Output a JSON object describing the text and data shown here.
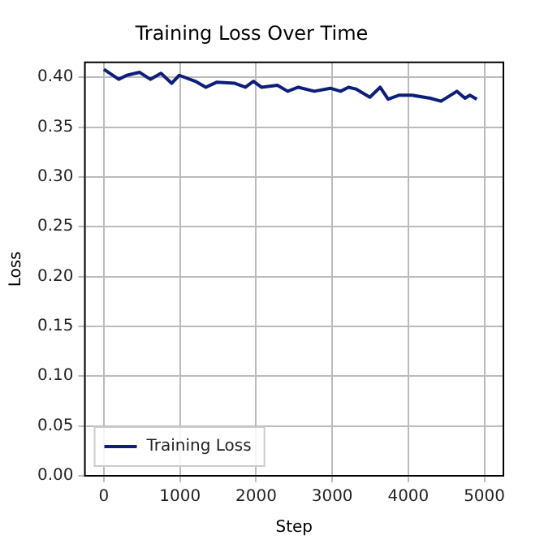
{
  "chart_data": {
    "type": "line",
    "title": "Training Loss Over Time",
    "xlabel": "Step",
    "ylabel": "Loss",
    "xlim": [
      -250,
      5250
    ],
    "xticks": [
      0,
      1000,
      2000,
      3000,
      4000,
      5000
    ],
    "ylim": [
      0,
      0.415
    ],
    "yticks": [
      {
        "value": 0,
        "label": "0.00"
      },
      {
        "value": 0.05,
        "label": "0.05"
      },
      {
        "value": 0.1,
        "label": "0.10"
      },
      {
        "value": 0.15,
        "label": "0.15"
      },
      {
        "value": 0.2,
        "label": "0.20"
      },
      {
        "value": 0.25,
        "label": "0.25"
      },
      {
        "value": 0.3,
        "label": "0.30"
      },
      {
        "value": 0.35,
        "label": "0.35"
      },
      {
        "value": 0.4,
        "label": "0.40"
      }
    ],
    "grid": true,
    "legend": "bottom left",
    "line_style": "solid",
    "marker": "none",
    "series": [
      {
        "name": "Training Loss",
        "color": "#0d1f7a",
        "x": [
          0,
          195,
          300,
          470,
          610,
          750,
          890,
          990,
          1200,
          1340,
          1480,
          1720,
          1860,
          1965,
          2070,
          2280,
          2415,
          2555,
          2765,
          2975,
          3110,
          3215,
          3320,
          3495,
          3630,
          3735,
          3875,
          4050,
          4290,
          4430,
          4640,
          4745,
          4810,
          4900
        ],
        "values": [
          0.408,
          0.398,
          0.402,
          0.405,
          0.398,
          0.404,
          0.394,
          0.402,
          0.396,
          0.39,
          0.395,
          0.394,
          0.39,
          0.396,
          0.39,
          0.392,
          0.386,
          0.39,
          0.386,
          0.389,
          0.386,
          0.39,
          0.388,
          0.38,
          0.39,
          0.378,
          0.382,
          0.382,
          0.379,
          0.376,
          0.386,
          0.379,
          0.382,
          0.378
        ]
      }
    ]
  }
}
